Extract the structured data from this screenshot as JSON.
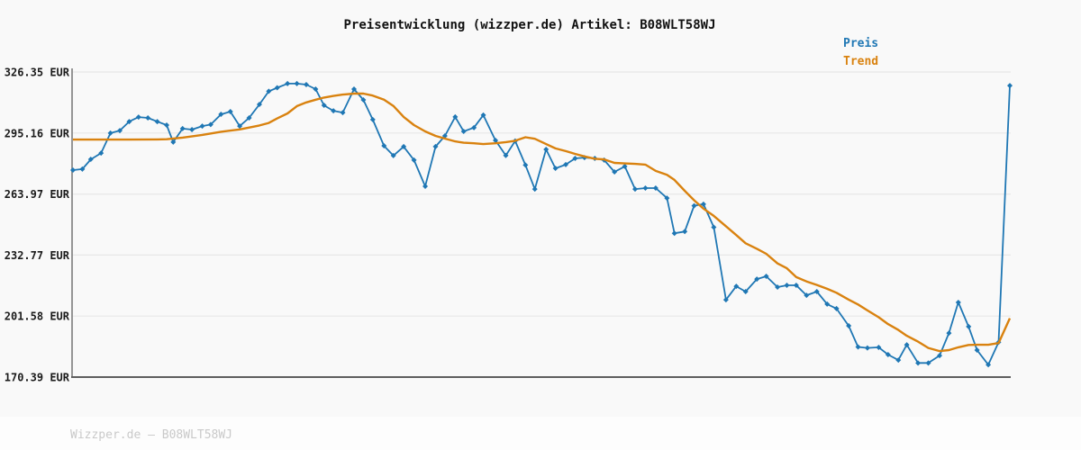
{
  "title": "Preisentwicklung (wizzper.de) Artikel: B08WLT58WJ",
  "watermark": "Wizzper.de – B08WLT58WJ",
  "colors": {
    "background": "#f9f9f9",
    "footer_background": "#fdfdfd",
    "grid": "#e8e8e8",
    "y_axis": "#8a8a8a",
    "x_axis": "#5e5e5e",
    "price": "#1f77b4",
    "trend": "#d9820f",
    "tick_text": "#1a1a1a",
    "watermark_text": "#c9c9c9"
  },
  "chart_data": {
    "type": "line",
    "title": "Preisentwicklung (wizzper.de) Artikel: B08WLT58WJ",
    "currency": "EUR",
    "xlabel": "",
    "ylabel": "",
    "x_axis_labels": "none",
    "grid": "horizontal",
    "legend_position": "top-right",
    "ylim": [
      170.39,
      326.35
    ],
    "y_ticks": [
      326.35,
      295.16,
      263.97,
      232.77,
      201.58,
      170.39
    ],
    "series": [
      {
        "name": "Preis",
        "color": "#1f77b4",
        "marker": "diamond",
        "points": [
          [
            0.0,
            276.2
          ],
          [
            0.01,
            276.7
          ],
          [
            0.019,
            281.7
          ],
          [
            0.03,
            284.9
          ],
          [
            0.04,
            295.1
          ],
          [
            0.05,
            296.4
          ],
          [
            0.06,
            301.0
          ],
          [
            0.07,
            303.3
          ],
          [
            0.08,
            302.9
          ],
          [
            0.09,
            301.0
          ],
          [
            0.1,
            299.2
          ],
          [
            0.107,
            290.5
          ],
          [
            0.117,
            297.4
          ],
          [
            0.127,
            296.9
          ],
          [
            0.138,
            298.7
          ],
          [
            0.147,
            299.5
          ],
          [
            0.158,
            304.7
          ],
          [
            0.168,
            306.1
          ],
          [
            0.178,
            298.7
          ],
          [
            0.188,
            302.9
          ],
          [
            0.199,
            309.8
          ],
          [
            0.209,
            316.5
          ],
          [
            0.218,
            318.3
          ],
          [
            0.229,
            320.4
          ],
          [
            0.239,
            320.4
          ],
          [
            0.249,
            319.9
          ],
          [
            0.259,
            317.6
          ],
          [
            0.268,
            309.3
          ],
          [
            0.278,
            306.5
          ],
          [
            0.288,
            305.6
          ],
          [
            0.3,
            317.6
          ],
          [
            0.31,
            312.1
          ],
          [
            0.32,
            302.0
          ],
          [
            0.332,
            288.6
          ],
          [
            0.342,
            283.6
          ],
          [
            0.353,
            288.2
          ],
          [
            0.364,
            281.3
          ],
          [
            0.376,
            267.9
          ],
          [
            0.387,
            288.2
          ],
          [
            0.397,
            293.7
          ],
          [
            0.408,
            303.4
          ],
          [
            0.417,
            296.0
          ],
          [
            0.428,
            297.9
          ],
          [
            0.438,
            304.3
          ],
          [
            0.451,
            291.4
          ],
          [
            0.462,
            283.7
          ],
          [
            0.472,
            291.1
          ],
          [
            0.483,
            278.8
          ],
          [
            0.493,
            266.5
          ],
          [
            0.505,
            286.8
          ],
          [
            0.515,
            277.1
          ],
          [
            0.526,
            279.0
          ],
          [
            0.536,
            282.2
          ],
          [
            0.546,
            282.6
          ],
          [
            0.557,
            282.2
          ],
          [
            0.567,
            281.3
          ],
          [
            0.578,
            275.3
          ],
          [
            0.589,
            278.1
          ],
          [
            0.6,
            266.5
          ],
          [
            0.611,
            267.0
          ],
          [
            0.622,
            267.0
          ],
          [
            0.634,
            261.9
          ],
          [
            0.642,
            243.9
          ],
          [
            0.653,
            244.8
          ],
          [
            0.663,
            258.0
          ],
          [
            0.673,
            258.8
          ],
          [
            0.684,
            247.0
          ],
          [
            0.697,
            209.9
          ],
          [
            0.708,
            216.8
          ],
          [
            0.718,
            214.1
          ],
          [
            0.73,
            220.5
          ],
          [
            0.74,
            221.9
          ],
          [
            0.752,
            216.4
          ],
          [
            0.762,
            217.3
          ],
          [
            0.772,
            217.3
          ],
          [
            0.783,
            212.2
          ],
          [
            0.794,
            214.1
          ],
          [
            0.805,
            207.7
          ],
          [
            0.815,
            205.4
          ],
          [
            0.828,
            196.6
          ],
          [
            0.838,
            185.8
          ],
          [
            0.848,
            185.3
          ],
          [
            0.86,
            185.6
          ],
          [
            0.87,
            181.9
          ],
          [
            0.881,
            179.1
          ],
          [
            0.89,
            186.9
          ],
          [
            0.902,
            177.6
          ],
          [
            0.913,
            177.6
          ],
          [
            0.925,
            181.4
          ],
          [
            0.935,
            192.9
          ],
          [
            0.945,
            208.6
          ],
          [
            0.956,
            196.2
          ],
          [
            0.965,
            184.2
          ],
          [
            0.977,
            176.7
          ],
          [
            0.988,
            188.2
          ],
          [
            1.0,
            319.4
          ]
        ]
      },
      {
        "name": "Trend",
        "color": "#d9820f",
        "marker": "none",
        "points": [
          [
            0.0,
            291.8
          ],
          [
            0.03,
            291.8
          ],
          [
            0.06,
            291.8
          ],
          [
            0.09,
            291.9
          ],
          [
            0.1,
            292.0
          ],
          [
            0.117,
            292.8
          ],
          [
            0.138,
            294.2
          ],
          [
            0.158,
            295.8
          ],
          [
            0.178,
            297.0
          ],
          [
            0.199,
            299.0
          ],
          [
            0.209,
            300.3
          ],
          [
            0.218,
            302.6
          ],
          [
            0.229,
            305.2
          ],
          [
            0.239,
            308.9
          ],
          [
            0.249,
            310.8
          ],
          [
            0.259,
            312.2
          ],
          [
            0.268,
            313.3
          ],
          [
            0.278,
            314.1
          ],
          [
            0.288,
            314.8
          ],
          [
            0.3,
            315.3
          ],
          [
            0.31,
            315.3
          ],
          [
            0.32,
            314.3
          ],
          [
            0.332,
            312.2
          ],
          [
            0.342,
            309.0
          ],
          [
            0.353,
            303.4
          ],
          [
            0.364,
            299.2
          ],
          [
            0.376,
            296.0
          ],
          [
            0.387,
            293.7
          ],
          [
            0.397,
            292.3
          ],
          [
            0.408,
            290.9
          ],
          [
            0.417,
            290.2
          ],
          [
            0.428,
            289.9
          ],
          [
            0.438,
            289.5
          ],
          [
            0.451,
            289.9
          ],
          [
            0.462,
            290.5
          ],
          [
            0.472,
            291.2
          ],
          [
            0.483,
            293.0
          ],
          [
            0.493,
            292.2
          ],
          [
            0.505,
            289.5
          ],
          [
            0.515,
            287.3
          ],
          [
            0.526,
            285.9
          ],
          [
            0.536,
            284.5
          ],
          [
            0.546,
            283.2
          ],
          [
            0.557,
            282.0
          ],
          [
            0.567,
            281.7
          ],
          [
            0.578,
            279.9
          ],
          [
            0.589,
            279.6
          ],
          [
            0.6,
            279.4
          ],
          [
            0.611,
            279.0
          ],
          [
            0.622,
            275.8
          ],
          [
            0.634,
            273.8
          ],
          [
            0.642,
            271.2
          ],
          [
            0.653,
            265.6
          ],
          [
            0.663,
            260.8
          ],
          [
            0.673,
            256.5
          ],
          [
            0.684,
            252.8
          ],
          [
            0.697,
            247.5
          ],
          [
            0.708,
            243.0
          ],
          [
            0.718,
            238.8
          ],
          [
            0.73,
            236.0
          ],
          [
            0.74,
            233.4
          ],
          [
            0.752,
            228.5
          ],
          [
            0.762,
            226.0
          ],
          [
            0.772,
            221.5
          ],
          [
            0.783,
            219.3
          ],
          [
            0.794,
            217.5
          ],
          [
            0.805,
            215.5
          ],
          [
            0.815,
            213.5
          ],
          [
            0.828,
            210.0
          ],
          [
            0.838,
            207.5
          ],
          [
            0.848,
            204.5
          ],
          [
            0.86,
            201.0
          ],
          [
            0.87,
            197.5
          ],
          [
            0.881,
            194.5
          ],
          [
            0.89,
            191.5
          ],
          [
            0.902,
            188.5
          ],
          [
            0.913,
            185.3
          ],
          [
            0.925,
            183.7
          ],
          [
            0.935,
            184.2
          ],
          [
            0.945,
            185.6
          ],
          [
            0.956,
            186.8
          ],
          [
            0.965,
            186.9
          ],
          [
            0.977,
            186.9
          ],
          [
            0.988,
            187.8
          ],
          [
            1.0,
            200.5
          ]
        ]
      }
    ]
  }
}
